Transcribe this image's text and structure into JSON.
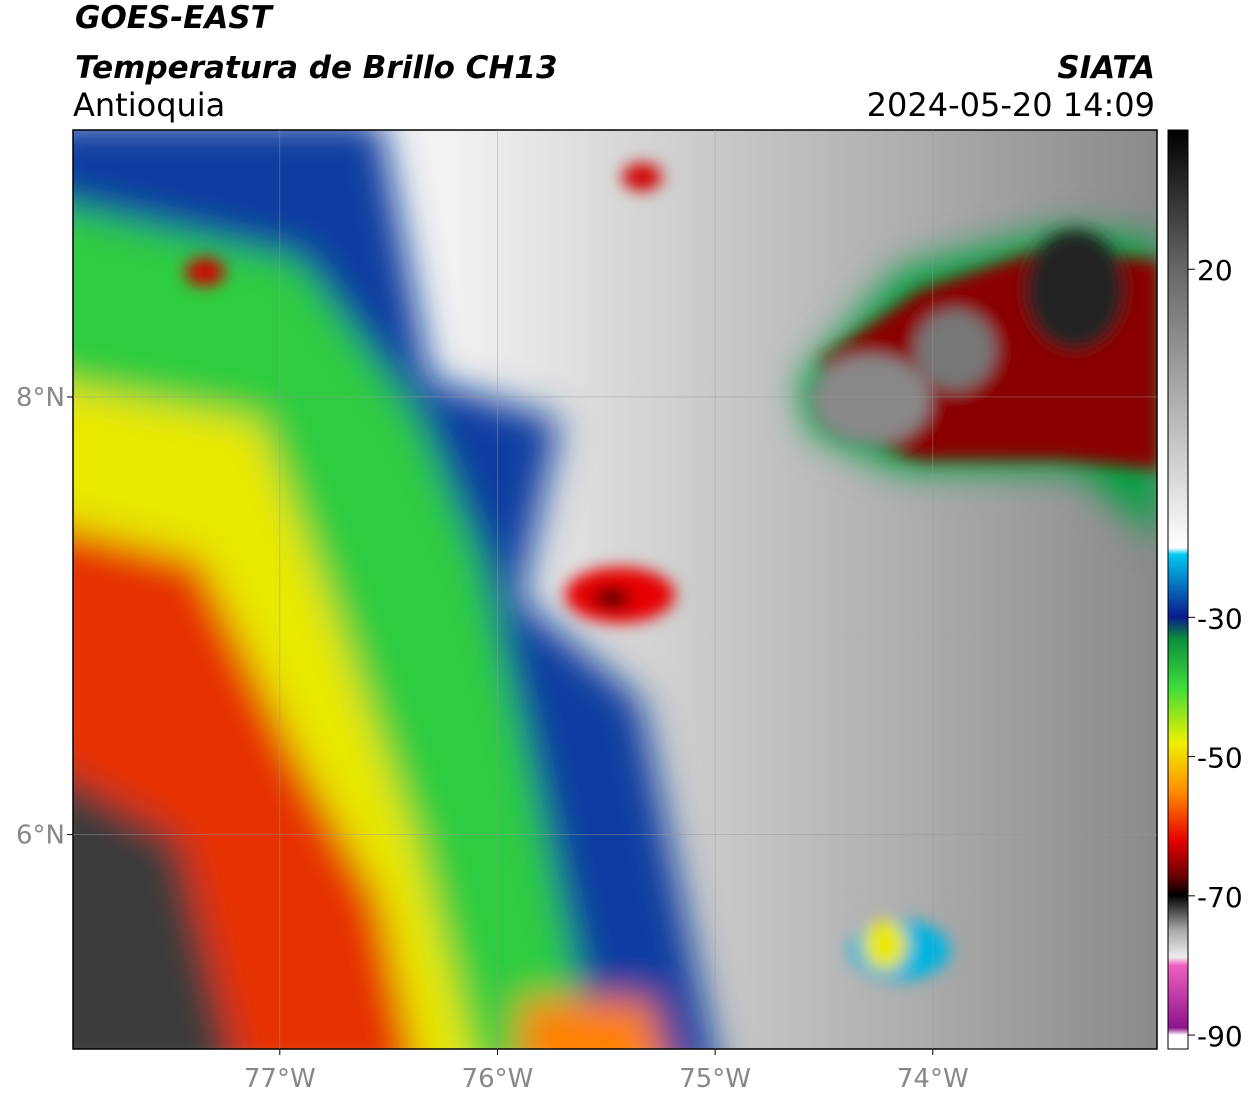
{
  "header": {
    "title": "GOES-EAST",
    "subtitle": "Temperatura de Brillo CH13",
    "region": "Antioquia",
    "source": "SIATA",
    "datetime": "2024-05-20 14:09"
  },
  "map": {
    "lonlim": [
      -77.95,
      -72.97
    ],
    "latlim": [
      5.02,
      9.22
    ],
    "lon_ticks": [
      {
        "value": -77,
        "label": "77°W"
      },
      {
        "value": -76,
        "label": "76°W"
      },
      {
        "value": -75,
        "label": "75°W"
      },
      {
        "value": -74,
        "label": "74°W"
      }
    ],
    "lat_ticks": [
      {
        "value": 8,
        "label": "8°N"
      },
      {
        "value": 6,
        "label": "6°N"
      }
    ],
    "grid": true
  },
  "colorbar": {
    "lim": [
      -92,
      40
    ],
    "ticks": [
      20,
      -30,
      -50,
      -70,
      -90
    ]
  }
}
